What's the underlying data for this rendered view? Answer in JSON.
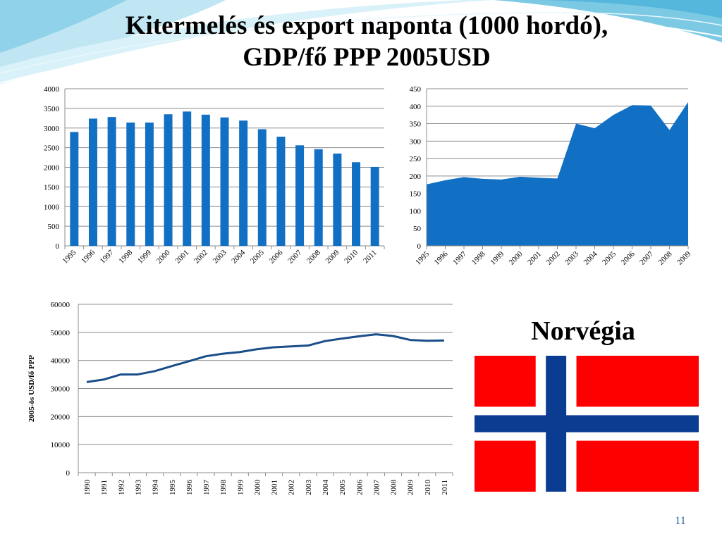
{
  "slide": {
    "title_line1": "Kitermelés és export naponta (1000 hordó),",
    "title_line2": "GDP/fő PPP 2005USD",
    "country": "Norvégia",
    "page_number": "11",
    "accent_color": "#1270c4"
  },
  "flag": {
    "red": "#ff0000",
    "white": "#ffffff",
    "blue": "#0a3d91"
  },
  "chart_data": [
    {
      "type": "bar",
      "title": "",
      "xlabel": "",
      "ylabel": "",
      "color": "#1270c4",
      "categories": [
        "1995",
        "1996",
        "1997",
        "1998",
        "1999",
        "2000",
        "2001",
        "2002",
        "2003",
        "2004",
        "2005",
        "2006",
        "2007",
        "2008",
        "2009",
        "2010",
        "2011"
      ],
      "values": [
        2900,
        3240,
        3280,
        3140,
        3140,
        3350,
        3420,
        3340,
        3270,
        3190,
        2970,
        2780,
        2560,
        2460,
        2350,
        2130,
        2010
      ],
      "ylim": [
        0,
        4000
      ],
      "yticks": [
        "0",
        "500",
        "1000",
        "1500",
        "2000",
        "2500",
        "3000",
        "3500",
        "4000"
      ],
      "grid": true
    },
    {
      "type": "area",
      "title": "",
      "xlabel": "",
      "ylabel": "",
      "color": "#1270c4",
      "categories": [
        "1995",
        "1996",
        "1997",
        "1998",
        "1999",
        "2000",
        "2001",
        "2002",
        "2003",
        "2004",
        "2005",
        "2006",
        "2007",
        "2008",
        "2009"
      ],
      "x": [
        1995,
        1996,
        1997,
        1998,
        1999,
        2000,
        2001,
        2002,
        2003,
        2004,
        2005,
        2006,
        2007,
        2008,
        2009,
        2009.85
      ],
      "values": [
        176,
        188,
        197,
        192,
        190,
        198,
        195,
        193,
        350,
        337,
        375,
        403,
        402,
        332,
        412
      ],
      "ylim": [
        0,
        450
      ],
      "yticks": [
        "0",
        "50",
        "100",
        "150",
        "200",
        "250",
        "300",
        "350",
        "400",
        "450"
      ],
      "grid": true
    },
    {
      "type": "line",
      "title": "",
      "xlabel": "",
      "ylabel": "2005-ös USD/fő PPP",
      "color": "#1a4e8a",
      "categories": [
        "1990",
        "1991",
        "1992",
        "1993",
        "1994",
        "1995",
        "1996",
        "1997",
        "1998",
        "1999",
        "2000",
        "2001",
        "2002",
        "2003",
        "2004",
        "2005",
        "2006",
        "2007",
        "2008",
        "2009",
        "2010",
        "2011"
      ],
      "values": [
        32300,
        33200,
        35000,
        35000,
        36200,
        38000,
        39700,
        41500,
        42400,
        43000,
        44000,
        44700,
        45000,
        45300,
        46900,
        47800,
        48600,
        49300,
        48700,
        47300,
        47000,
        47100
      ],
      "ylim": [
        0,
        60000
      ],
      "yticks": [
        "0",
        "10000",
        "20000",
        "30000",
        "40000",
        "50000",
        "60000"
      ],
      "grid": true
    }
  ]
}
